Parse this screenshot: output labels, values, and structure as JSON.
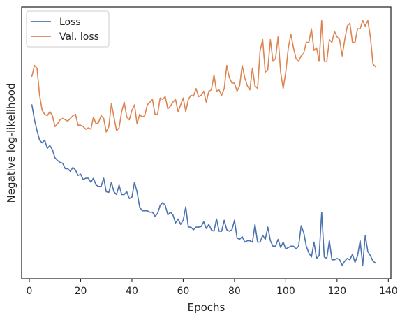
{
  "chart_data": {
    "type": "line",
    "xlabel": "Epochs",
    "ylabel": "Negative log-likelihood",
    "xlim": [
      -3,
      141
    ],
    "ylim": [
      0.0,
      1.0
    ],
    "x_ticks": [
      0,
      20,
      40,
      60,
      80,
      100,
      120,
      140
    ],
    "x_tick_labels": [
      "0",
      "20",
      "40",
      "60",
      "80",
      "100",
      "120",
      "140"
    ],
    "y_ticks_labeled": false,
    "grid": false,
    "legend_position": "top-left",
    "series": [
      {
        "name": "Loss",
        "color": "#4c72b0",
        "x": [
          1,
          2,
          3,
          4,
          5,
          6,
          7,
          8,
          9,
          10,
          11,
          12,
          13,
          14,
          15,
          16,
          17,
          18,
          19,
          20,
          21,
          22,
          23,
          24,
          25,
          26,
          27,
          28,
          29,
          30,
          31,
          32,
          33,
          34,
          35,
          36,
          37,
          38,
          39,
          40,
          41,
          42,
          43,
          44,
          45,
          46,
          47,
          48,
          49,
          50,
          51,
          52,
          53,
          54,
          55,
          56,
          57,
          58,
          59,
          60,
          61,
          62,
          63,
          64,
          65,
          66,
          67,
          68,
          69,
          70,
          71,
          72,
          73,
          74,
          75,
          76,
          77,
          78,
          79,
          80,
          81,
          82,
          83,
          84,
          85,
          86,
          87,
          88,
          89,
          90,
          91,
          92,
          93,
          94,
          95,
          96,
          97,
          98,
          99,
          100,
          101,
          102,
          103,
          104,
          105,
          106,
          107,
          108,
          109,
          110,
          111,
          112,
          113,
          114,
          115,
          116,
          117,
          118,
          119,
          120,
          121,
          122,
          123,
          124,
          125,
          126,
          127,
          128,
          129,
          130,
          131,
          132,
          133,
          134,
          135
        ],
        "values": [
          0.64,
          0.585,
          0.545,
          0.51,
          0.5,
          0.51,
          0.48,
          0.49,
          0.475,
          0.445,
          0.435,
          0.428,
          0.425,
          0.405,
          0.405,
          0.395,
          0.41,
          0.4,
          0.38,
          0.385,
          0.365,
          0.37,
          0.37,
          0.355,
          0.37,
          0.345,
          0.34,
          0.34,
          0.37,
          0.32,
          0.318,
          0.355,
          0.32,
          0.31,
          0.345,
          0.31,
          0.31,
          0.32,
          0.295,
          0.3,
          0.355,
          0.32,
          0.265,
          0.25,
          0.25,
          0.25,
          0.245,
          0.245,
          0.23,
          0.24,
          0.27,
          0.28,
          0.27,
          0.235,
          0.245,
          0.235,
          0.205,
          0.22,
          0.2,
          0.215,
          0.265,
          0.19,
          0.19,
          0.18,
          0.19,
          0.19,
          0.192,
          0.21,
          0.185,
          0.2,
          0.18,
          0.175,
          0.22,
          0.175,
          0.175,
          0.215,
          0.18,
          0.175,
          0.18,
          0.215,
          0.15,
          0.145,
          0.155,
          0.135,
          0.14,
          0.14,
          0.135,
          0.2,
          0.135,
          0.135,
          0.16,
          0.145,
          0.19,
          0.14,
          0.12,
          0.12,
          0.145,
          0.115,
          0.135,
          0.11,
          0.115,
          0.12,
          0.12,
          0.11,
          0.12,
          0.195,
          0.17,
          0.12,
          0.095,
          0.08,
          0.135,
          0.075,
          0.085,
          0.245,
          0.08,
          0.075,
          0.14,
          0.07,
          0.07,
          0.075,
          0.07,
          0.05,
          0.065,
          0.075,
          0.07,
          0.09,
          0.06,
          0.085,
          0.14,
          0.05,
          0.16,
          0.1,
          0.085,
          0.065,
          0.058
        ]
      },
      {
        "name": "Val. loss",
        "color": "#dd8452",
        "x": [
          1,
          2,
          3,
          4,
          5,
          6,
          7,
          8,
          9,
          10,
          11,
          12,
          13,
          14,
          15,
          16,
          17,
          18,
          19,
          20,
          21,
          22,
          23,
          24,
          25,
          26,
          27,
          28,
          29,
          30,
          31,
          32,
          33,
          34,
          35,
          36,
          37,
          38,
          39,
          40,
          41,
          42,
          43,
          44,
          45,
          46,
          47,
          48,
          49,
          50,
          51,
          52,
          53,
          54,
          55,
          56,
          57,
          58,
          59,
          60,
          61,
          62,
          63,
          64,
          65,
          66,
          67,
          68,
          69,
          70,
          71,
          72,
          73,
          74,
          75,
          76,
          77,
          78,
          79,
          80,
          81,
          82,
          83,
          84,
          85,
          86,
          87,
          88,
          89,
          90,
          91,
          92,
          93,
          94,
          95,
          96,
          97,
          98,
          99,
          100,
          101,
          102,
          103,
          104,
          105,
          106,
          107,
          108,
          109,
          110,
          111,
          112,
          113,
          114,
          115,
          116,
          117,
          118,
          119,
          120,
          121,
          122,
          123,
          124,
          125,
          126,
          127,
          128,
          129,
          130,
          131,
          132,
          133,
          134,
          135
        ],
        "values": [
          0.745,
          0.785,
          0.775,
          0.675,
          0.62,
          0.605,
          0.6,
          0.615,
          0.6,
          0.56,
          0.57,
          0.585,
          0.59,
          0.585,
          0.58,
          0.59,
          0.6,
          0.605,
          0.565,
          0.565,
          0.56,
          0.55,
          0.555,
          0.55,
          0.595,
          0.57,
          0.575,
          0.6,
          0.59,
          0.54,
          0.56,
          0.645,
          0.595,
          0.545,
          0.555,
          0.615,
          0.65,
          0.595,
          0.585,
          0.62,
          0.64,
          0.57,
          0.605,
          0.595,
          0.6,
          0.64,
          0.65,
          0.66,
          0.605,
          0.605,
          0.665,
          0.66,
          0.67,
          0.625,
          0.635,
          0.65,
          0.66,
          0.615,
          0.64,
          0.665,
          0.615,
          0.66,
          0.675,
          0.672,
          0.7,
          0.67,
          0.675,
          0.69,
          0.65,
          0.69,
          0.695,
          0.75,
          0.69,
          0.695,
          0.675,
          0.7,
          0.785,
          0.74,
          0.72,
          0.72,
          0.69,
          0.71,
          0.785,
          0.74,
          0.71,
          0.695,
          0.775,
          0.71,
          0.7,
          0.84,
          0.88,
          0.76,
          0.77,
          0.88,
          0.8,
          0.81,
          0.89,
          0.76,
          0.7,
          0.76,
          0.85,
          0.9,
          0.85,
          0.81,
          0.8,
          0.82,
          0.83,
          0.87,
          0.87,
          0.92,
          0.84,
          0.85,
          0.8,
          0.95,
          0.8,
          0.8,
          0.88,
          0.87,
          0.91,
          0.89,
          0.88,
          0.82,
          0.88,
          0.93,
          0.94,
          0.87,
          0.87,
          0.92,
          0.92,
          0.95,
          0.93,
          0.95,
          0.89,
          0.79,
          0.78
        ]
      }
    ]
  }
}
